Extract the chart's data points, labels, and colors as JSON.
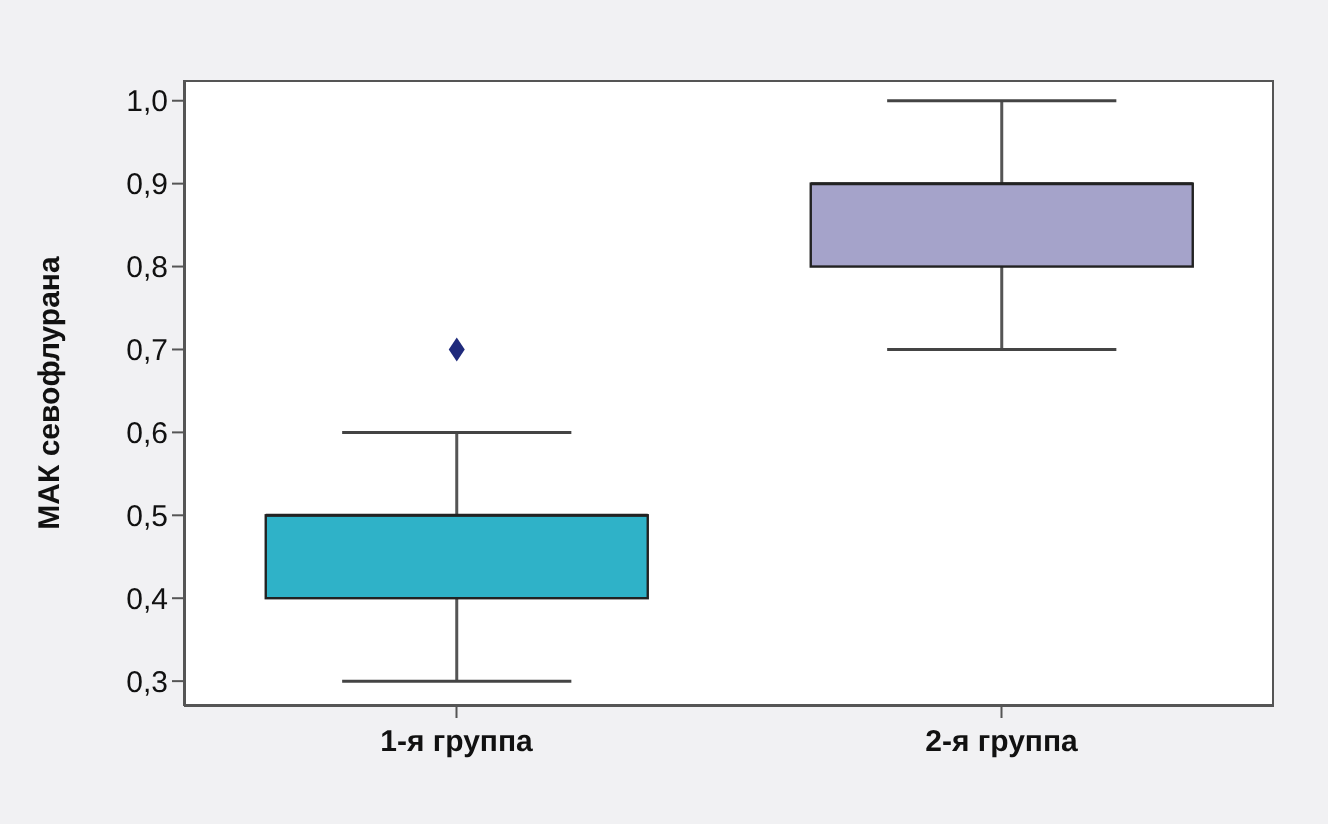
{
  "chart_data": {
    "type": "box",
    "ylabel": "МАК севофлурана",
    "categories": [
      "1-я группа",
      "2-я группа"
    ],
    "colors": [
      "#2fb2c8",
      "#a5a3ca"
    ],
    "boxes": [
      {
        "low": 0.3,
        "q1": 0.4,
        "median": 0.5,
        "q3": 0.5,
        "high": 0.6,
        "outliers": [
          0.7
        ]
      },
      {
        "low": 0.7,
        "q1": 0.8,
        "median": 0.9,
        "q3": 0.9,
        "high": 1.0
      }
    ],
    "ylim": [
      0.27,
      1.025
    ],
    "yticks": [
      {
        "value": 0.3,
        "label": "0,3"
      },
      {
        "value": 0.4,
        "label": "0,4"
      },
      {
        "value": 0.5,
        "label": "0,5"
      },
      {
        "value": 0.6,
        "label": "0,6"
      },
      {
        "value": 0.7,
        "label": "0,7"
      },
      {
        "value": 0.8,
        "label": "0,8"
      },
      {
        "value": 0.9,
        "label": "0,9"
      },
      {
        "value": 1.0,
        "label": "1,0"
      }
    ],
    "grid": false,
    "legend": false
  }
}
